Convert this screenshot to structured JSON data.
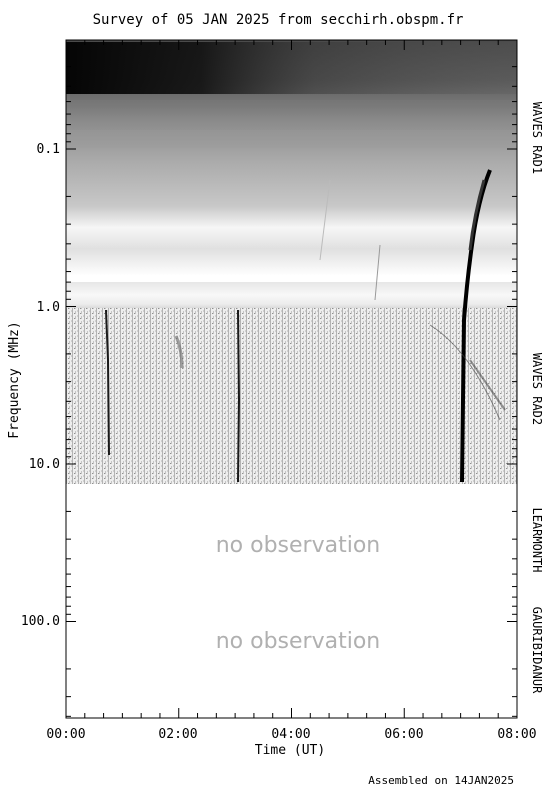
{
  "chart_data": {
    "type": "heatmap",
    "title": "Survey of 05 JAN 2025 from secchirh.obspm.fr",
    "xlabel": "Time (UT)",
    "ylabel": "Frequency (MHz)",
    "footer": "Assembled on 14JAN2025",
    "x_range_hours": [
      0,
      8
    ],
    "x_ticks": [
      "00:00",
      "02:00",
      "04:00",
      "06:00",
      "08:00"
    ],
    "y_scale": "log",
    "y_range_mhz": [
      0.02,
      400
    ],
    "y_ticks": [
      "0.1",
      "1.0",
      "10.0",
      "100.0"
    ],
    "panels": [
      {
        "label": "WAVES RAD1",
        "freq_range_mhz": [
          0.02,
          1.0
        ],
        "observed": true
      },
      {
        "label": "WAVES RAD2",
        "freq_range_mhz": [
          1.0,
          14
        ],
        "observed": true
      },
      {
        "label": "LEARMONTH",
        "freq_range_mhz": [
          14,
          180
        ],
        "observed": false,
        "note": "no observation"
      },
      {
        "label": "GAURIBIDANUR",
        "freq_range_mhz": [
          40,
          400
        ],
        "observed": false,
        "note": "no observation"
      }
    ],
    "bursts_ut": [
      "00:48",
      "03:08",
      "07:05"
    ],
    "grid": false,
    "colormap": "grayscale"
  }
}
